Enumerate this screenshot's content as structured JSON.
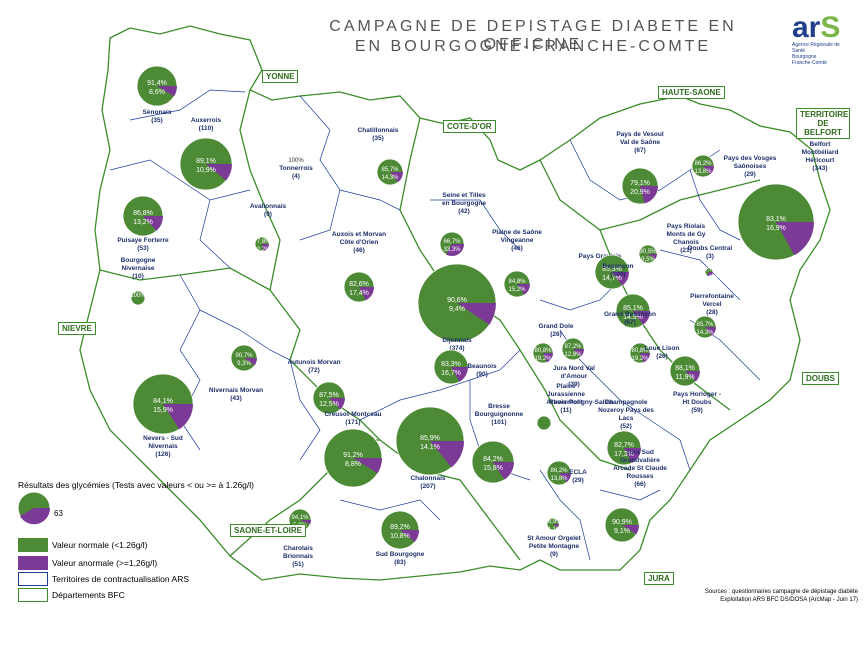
{
  "title_line1": "CAMPAGNE DE DEPISTAGE DIABETE EN OFFICINE",
  "title_line2": "EN BOURGOGNE-FRANCHE-COMTE",
  "logo": {
    "text": "ARS",
    "line1": "Agence Régionale de Santé",
    "line2": "Bourgogne",
    "line3": "Franche-Comté"
  },
  "departments": [
    "YONNE",
    "COTE-D'OR",
    "HAUTE-SAONE",
    "TERRITOIRE DE BELFORT",
    "NIEVRE",
    "DOUBS",
    "SAONE-ET-LOIRE",
    "JURA"
  ],
  "colors": {
    "normal": "#4d8a36",
    "abnormal": "#7b3a96",
    "territory_border": "#1d3b9c",
    "department_border": "#3b8c2a"
  },
  "territories": [
    {
      "name": "Sénonais",
      "count": "(35)",
      "normal": 91.4,
      "abnormal": 8.6,
      "normal_label": "91,4%",
      "abnormal_label": "8,6%"
    },
    {
      "name": "Auxerrois",
      "count": "(110)",
      "normal": 89.1,
      "abnormal": 10.9,
      "normal_label": "89,1%",
      "abnormal_label": "10,9%"
    },
    {
      "name": "Tonnerrois",
      "count": "(4)",
      "normal": 100,
      "abnormal": 0,
      "normal_label": "100%",
      "abnormal_label": ""
    },
    {
      "name": "Chatillonnais",
      "count": "(35)",
      "normal": 85.7,
      "abnormal": 14.3,
      "normal_label": "85,7%",
      "abnormal_label": "14,3%"
    },
    {
      "name": "Puisaye Forterre",
      "count": "(53)",
      "normal": 86.8,
      "abnormal": 13.2,
      "normal_label": "86,8%",
      "abnormal_label": "13,2%"
    },
    {
      "name": "Avallonnais",
      "count": "(9)",
      "normal": 77.8,
      "abnormal": 22.2,
      "normal_label": "77,8%",
      "abnormal_label": "22,2%"
    },
    {
      "name": "Auxois et Morvan Côte d'Orien",
      "count": "(46)",
      "normal": 82.6,
      "abnormal": 17.4,
      "normal_label": "82,6%",
      "abnormal_label": "17,4%"
    },
    {
      "name": "Seine et Tilles en Bourgogne",
      "count": "(42)",
      "normal": 66.7,
      "abnormal": 33.3,
      "normal_label": "66,7%",
      "abnormal_label": "33,3%"
    },
    {
      "name": "Plaine de Saône Vingeanne",
      "count": "(46)",
      "normal": 84.8,
      "abnormal": 15.2,
      "normal_label": "84,8%",
      "abnormal_label": "15,2%"
    },
    {
      "name": "Dijonnais",
      "count": "(374)",
      "normal": 90.6,
      "abnormal": 9.4,
      "normal_label": "90,6%",
      "abnormal_label": "9,4%"
    },
    {
      "name": "Bourgogne Nivernaise",
      "count": "(10)",
      "normal": 100,
      "abnormal": 0,
      "normal_label": "100%",
      "abnormal_label": ""
    },
    {
      "name": "Pays de Vesoul Val de Saône",
      "count": "(67)",
      "normal": 79.1,
      "abnormal": 20.9,
      "normal_label": "79,1%",
      "abnormal_label": "20,9%"
    },
    {
      "name": "Pays des Vosges Saônoises",
      "count": "(29)",
      "normal": 86.2,
      "abnormal": 13.8,
      "normal_label": "86,2%",
      "abnormal_label": "13,8%"
    },
    {
      "name": "Aire Urbaine Belfort Montbéliard Héricourt",
      "count": "(343)",
      "normal": 83.1,
      "abnormal": 16.9,
      "normal_label": "83,1%",
      "abnormal_label": "16,9%"
    },
    {
      "name": "Pays Riolais Monts de Gy Chanois",
      "count": "(21)",
      "normal": 90.5,
      "abnormal": 9.5,
      "normal_label": "90,5%",
      "abnormal_label": "9,5%"
    },
    {
      "name": "Pays Graylois",
      "count": "",
      "normal": 0,
      "abnormal": 0,
      "normal_label": "",
      "abnormal_label": ""
    },
    {
      "name": "Besançon",
      "count": "(109)",
      "normal": 85.3,
      "abnormal": 14.7,
      "normal_label": "85,3%",
      "abnormal_label": "14,7%"
    },
    {
      "name": "Doubs Central",
      "count": "(3)",
      "normal": 66.7,
      "abnormal": 33.3,
      "normal_label": "66,7%",
      "abnormal_label": "33,3%"
    },
    {
      "name": "Grand Besançon",
      "count": "(67)",
      "normal": 85.1,
      "abnormal": 14.9,
      "normal_label": "85,1%",
      "abnormal_label": "14,9%"
    },
    {
      "name": "Pierrefontaine Vercel",
      "count": "(28)",
      "normal": 85.7,
      "abnormal": 14.3,
      "normal_label": "85,7%",
      "abnormal_label": "14,3%"
    },
    {
      "name": "Nivernais Morvan",
      "count": "(43)",
      "normal": 90.7,
      "abnormal": 9.3,
      "normal_label": "90,7%",
      "abnormal_label": "9,3%"
    },
    {
      "name": "Beaunois",
      "count": "(90)",
      "normal": 83.3,
      "abnormal": 16.7,
      "normal_label": "83,3%",
      "abnormal_label": "16,7%"
    },
    {
      "name": "Grand Dole",
      "count": "(26)",
      "normal": 80.8,
      "abnormal": 19.2,
      "normal_label": "80,8%",
      "abnormal_label": "19,2%"
    },
    {
      "name": "Jura Nord Val d'Amour",
      "count": "(39)",
      "normal": 87.2,
      "abnormal": 12.8,
      "normal_label": "87,2%",
      "abnormal_label": "12,8%"
    },
    {
      "name": "Loue Lison",
      "count": "(26)",
      "normal": 80.8,
      "abnormal": 19.2,
      "normal_label": "80,8%",
      "abnormal_label": "19,2%"
    },
    {
      "name": "Pays Horloger - Ht Doubs",
      "count": "(59)",
      "normal": 88.1,
      "abnormal": 11.9,
      "normal_label": "88,1%",
      "abnormal_label": "11,9%"
    },
    {
      "name": "Autunois Morvan",
      "count": "(72)",
      "normal": 87.5,
      "abnormal": 12.5,
      "normal_label": "87,5%",
      "abnormal_label": "12,5%"
    },
    {
      "name": "Arbois-Poligny-Salins",
      "count": "",
      "normal": 0,
      "abnormal": 0,
      "normal_label": "",
      "abnormal_label": ""
    },
    {
      "name": "Nevers - Sud Nivernais",
      "count": "(126)",
      "normal": 84.1,
      "abnormal": 15.9,
      "normal_label": "84,1%",
      "abnormal_label": "15,9%"
    },
    {
      "name": "Creusot-Montceau",
      "count": "(171)",
      "normal": 91.2,
      "abnormal": 8.8,
      "normal_label": "91,2%",
      "abnormal_label": "8,8%"
    },
    {
      "name": "Chalonnais",
      "count": "(207)",
      "normal": 85.9,
      "abnormal": 14.1,
      "normal_label": "85,9%",
      "abnormal_label": "14,1%"
    },
    {
      "name": "Bresse Bourguignonne",
      "count": "(101)",
      "normal": 84.2,
      "abnormal": 15.8,
      "normal_label": "84,2%",
      "abnormal_label": "15,8%"
    },
    {
      "name": "Plaine Jurassienne Revermont",
      "count": "(11)",
      "normal": 100,
      "abnormal": 0,
      "normal_label": "",
      "abnormal_label": ""
    },
    {
      "name": "Champagnole Nozeroy Pays des Lacs",
      "count": "(52)",
      "normal": 82.7,
      "abnormal": 17.3,
      "normal_label": "82,7%",
      "abnormal_label": "17,3%"
    },
    {
      "name": "ECLA",
      "count": "(29)",
      "normal": 86.2,
      "abnormal": 13.8,
      "normal_label": "86,2%",
      "abnormal_label": "13,8%"
    },
    {
      "name": "Charolais Brionnais",
      "count": "(51)",
      "normal": 94.1,
      "abnormal": 5.9,
      "normal_label": "94,1%",
      "abnormal_label": "5,9%"
    },
    {
      "name": "Sud Bourgogne",
      "count": "(83)",
      "normal": 89.2,
      "abnormal": 10.8,
      "normal_label": "89,2%",
      "abnormal_label": "10,8%"
    },
    {
      "name": "St Amour Orgelet Petite Montagne",
      "count": "(9)",
      "normal": 88.9,
      "abnormal": 11.1,
      "normal_label": "88,9%",
      "abnormal_label": "11,1%"
    },
    {
      "name": "Jura Sud Grandvalière Arcade St Claude Rousses",
      "count": "(66)",
      "normal": 90.9,
      "abnormal": 9.1,
      "normal_label": "90,9%",
      "abnormal_label": "9,1%"
    }
  ],
  "legend": {
    "title": "Résultats des glycémies (Tests avec valeurs < ou >= à 1.26g/l)",
    "sample_value": "63",
    "normal_label": "Valeur normale (<1.26g/l)",
    "abnormal_label": "Valeur anormale (>=1,26g/l)",
    "territories_label": "Territoires de contractualisation ARS",
    "departments_label": "Départements BFC"
  },
  "sources": {
    "line1": "Sources : questionnaires campagne de dépistage diabète",
    "line2": "Exploitation ARS BFC DS/DOSA (ArcMap - Juin 17)"
  }
}
